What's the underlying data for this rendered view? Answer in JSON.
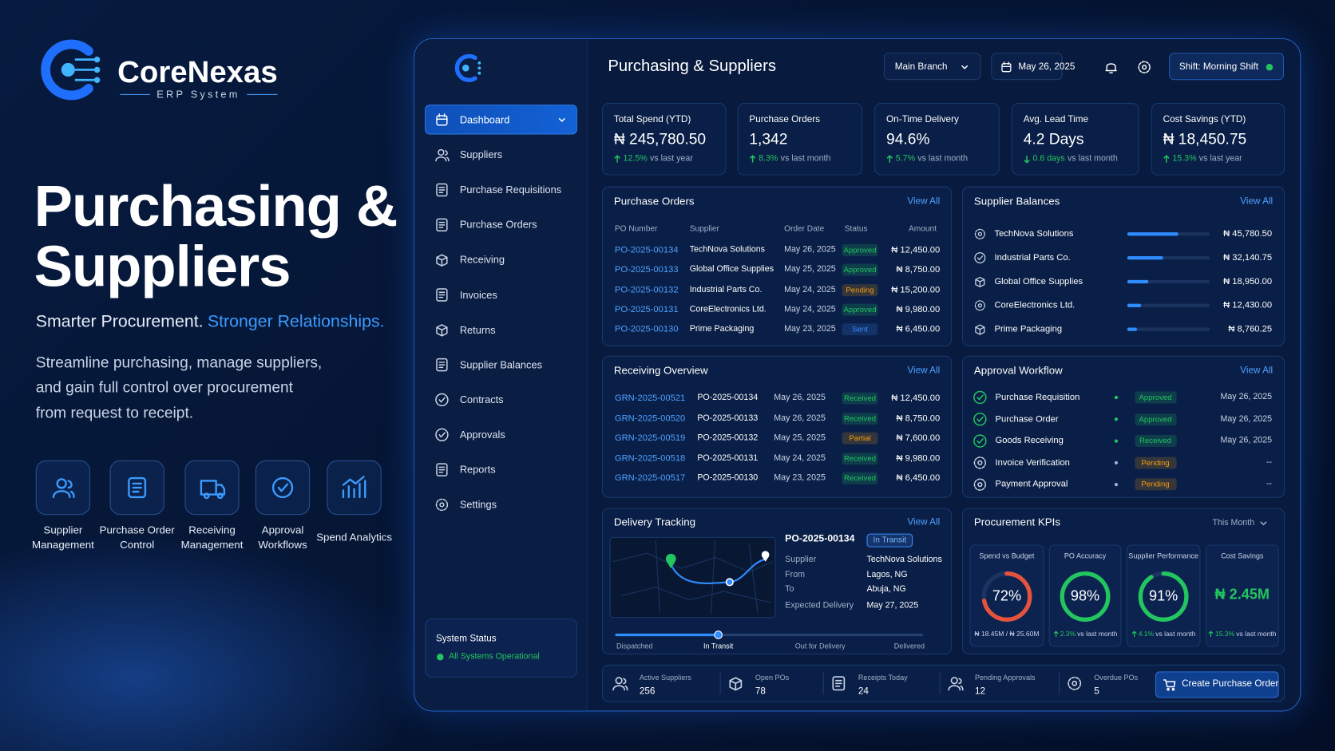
{
  "brand": {
    "name": "CoreNexas",
    "tagline": "ERP System"
  },
  "hero": {
    "title_lines": [
      "Purchasing &",
      "Suppliers"
    ],
    "subtitle": "Smarter Procurement.",
    "subtitle_highlight": "Stronger Relationships.",
    "description": "Streamline purchasing, manage suppliers, and gain full control over procurement from request to receipt."
  },
  "features": [
    "Supplier Management",
    "Purchase Order Control",
    "Receiving Management",
    "Approval Workflows",
    "Spend Analytics"
  ],
  "sidebar": {
    "nav": [
      "Dashboard",
      "Suppliers",
      "Purchase Requisitions",
      "Purchase Orders",
      "Receiving",
      "Invoices",
      "Returns",
      "Supplier Balances",
      "Contracts",
      "Approvals",
      "Reports",
      "Settings"
    ],
    "system_status": {
      "title": "System Status",
      "status": "All Systems Operational"
    }
  },
  "header": {
    "title": "Purchasing & Suppliers",
    "branch": "Main Branch",
    "date": "May 26, 2025",
    "shift": "Shift: Morning Shift"
  },
  "kpis": [
    {
      "label": "Total Spend (YTD)",
      "value": "₦ 245,780.50",
      "change": "12.5%",
      "note": "vs last year",
      "trend": "up"
    },
    {
      "label": "Purchase Orders",
      "value": "1,342",
      "change": "8.3%",
      "note": "vs last month",
      "trend": "up"
    },
    {
      "label": "On-Time Delivery",
      "value": "94.6%",
      "change": "5.7%",
      "note": "vs last month",
      "trend": "up"
    },
    {
      "label": "Avg. Lead Time",
      "value": "4.2 Days",
      "change": "0.6 days",
      "note": "vs last month",
      "trend": "down"
    },
    {
      "label": "Cost Savings (YTD)",
      "value": "₦ 18,450.75",
      "change": "15.3%",
      "note": "vs last year",
      "trend": "up"
    }
  ],
  "badge_colors": {
    "Approved": "#22c55e",
    "Pending": "#f59e0b",
    "Sent": "#3b8cff",
    "Received": "#22c55e",
    "Partial": "#f59e0b",
    "In Transit": "#3b8cff"
  },
  "purchase_orders": {
    "title": "Purchase Orders",
    "link": "View All",
    "columns": [
      "PO Number",
      "Supplier",
      "Order Date",
      "Status",
      "Amount"
    ],
    "rows": [
      [
        "PO-2025-00134",
        "TechNova Solutions",
        "May 26, 2025",
        "Approved",
        "₦ 12,450.00"
      ],
      [
        "PO-2025-00133",
        "Global Office Supplies",
        "May 25, 2025",
        "Approved",
        "₦ 8,750.00"
      ],
      [
        "PO-2025-00132",
        "Industrial Parts Co.",
        "May 24, 2025",
        "Pending",
        "₦ 15,200.00"
      ],
      [
        "PO-2025-00131",
        "CoreElectronics Ltd.",
        "May 24, 2025",
        "Approved",
        "₦ 9,980.00"
      ],
      [
        "PO-2025-00130",
        "Prime Packaging",
        "May 23, 2025",
        "Sent",
        "₦ 6,450.00"
      ]
    ]
  },
  "supplier_balances": {
    "title": "Supplier Balances",
    "link": "View All",
    "rows": [
      {
        "name": "TechNova Solutions",
        "balance": {
          "value": 45780.5,
          "label": "₦ 45,780.50"
        }
      },
      {
        "name": "Industrial Parts Co.",
        "balance": {
          "value": 32140.75,
          "label": "₦ 32,140.75"
        }
      },
      {
        "name": "Global Office Supplies",
        "balance": {
          "value": 18950.0,
          "label": "₦ 18,950.00"
        }
      },
      {
        "name": "CoreElectronics Ltd.",
        "balance": {
          "value": 12430.0,
          "label": "₦ 12,430.00"
        }
      },
      {
        "name": "Prime Packaging",
        "balance": {
          "value": 8760.25,
          "label": "₦ 8,760.25"
        }
      }
    ]
  },
  "receiving": {
    "title": "Receiving Overview",
    "link": "View All",
    "rows": [
      [
        "GRN-2025-00521",
        "PO-2025-00134",
        "May 26, 2025",
        "Received",
        "₦ 12,450.00"
      ],
      [
        "GRN-2025-00520",
        "PO-2025-00133",
        "May 26, 2025",
        "Received",
        "₦ 8,750.00"
      ],
      [
        "GRN-2025-00519",
        "PO-2025-00132",
        "May 25, 2025",
        "Partial",
        "₦ 7,600.00"
      ],
      [
        "GRN-2025-00518",
        "PO-2025-00131",
        "May 24, 2025",
        "Received",
        "₦ 9,980.00"
      ],
      [
        "GRN-2025-00517",
        "PO-2025-00130",
        "May 23, 2025",
        "Received",
        "₦ 6,450.00"
      ]
    ]
  },
  "approval_workflow": {
    "title": "Approval Workflow",
    "link": "View All",
    "rows": [
      [
        "Purchase Requisition",
        "Approved",
        "May 26, 2025"
      ],
      [
        "Purchase Order",
        "Approved",
        "May 26, 2025"
      ],
      [
        "Goods Receiving",
        "Received",
        "May 26, 2025"
      ],
      [
        "Invoice Verification",
        "Pending",
        "--"
      ],
      [
        "Payment Approval",
        "Pending",
        "--"
      ]
    ]
  },
  "delivery_tracking": {
    "title": "Delivery Tracking",
    "link": "View All",
    "po": "PO-2025-00134",
    "status": "In Transit",
    "fields": [
      [
        "Supplier",
        "TechNova Solutions"
      ],
      [
        "From",
        "Lagos, NG"
      ],
      [
        "To",
        "Abuja, NG"
      ],
      [
        "Expected Delivery",
        "May 27, 2025"
      ]
    ],
    "stages": [
      "Dispatched",
      "In Transit",
      "Out for Delivery",
      "Delivered"
    ]
  },
  "procurement_kpis": {
    "title": "Procurement KPIs",
    "period": "This Month",
    "items": [
      {
        "label": "Spend vs Budget",
        "value": 72,
        "value_label": "72%",
        "note": "₦ 18.45M / ₦ 25.60M",
        "color": "#e5533d"
      },
      {
        "label": "PO Accuracy",
        "value": 98,
        "value_label": "98%",
        "change": "2.3%",
        "note": "vs last month",
        "color": "#22c55e"
      },
      {
        "label": "Supplier Performance",
        "value": 91,
        "value_label": "91%",
        "change": "4.1%",
        "note": "vs last month",
        "color": "#22c55e"
      },
      {
        "label": "Cost Savings",
        "value_label": "₦ 2.45M",
        "change": "15.3%",
        "note": "vs last month",
        "color": "#22c55e"
      }
    ]
  },
  "footer_stats": [
    {
      "label": "Active Suppliers",
      "value": 256
    },
    {
      "label": "Open POs",
      "value": 78
    },
    {
      "label": "Receipts Today",
      "value": 24
    },
    {
      "label": "Pending Approvals",
      "value": 12
    },
    {
      "label": "Overdue POs",
      "value": 5
    }
  ],
  "action_button": "Create Purchase Order"
}
